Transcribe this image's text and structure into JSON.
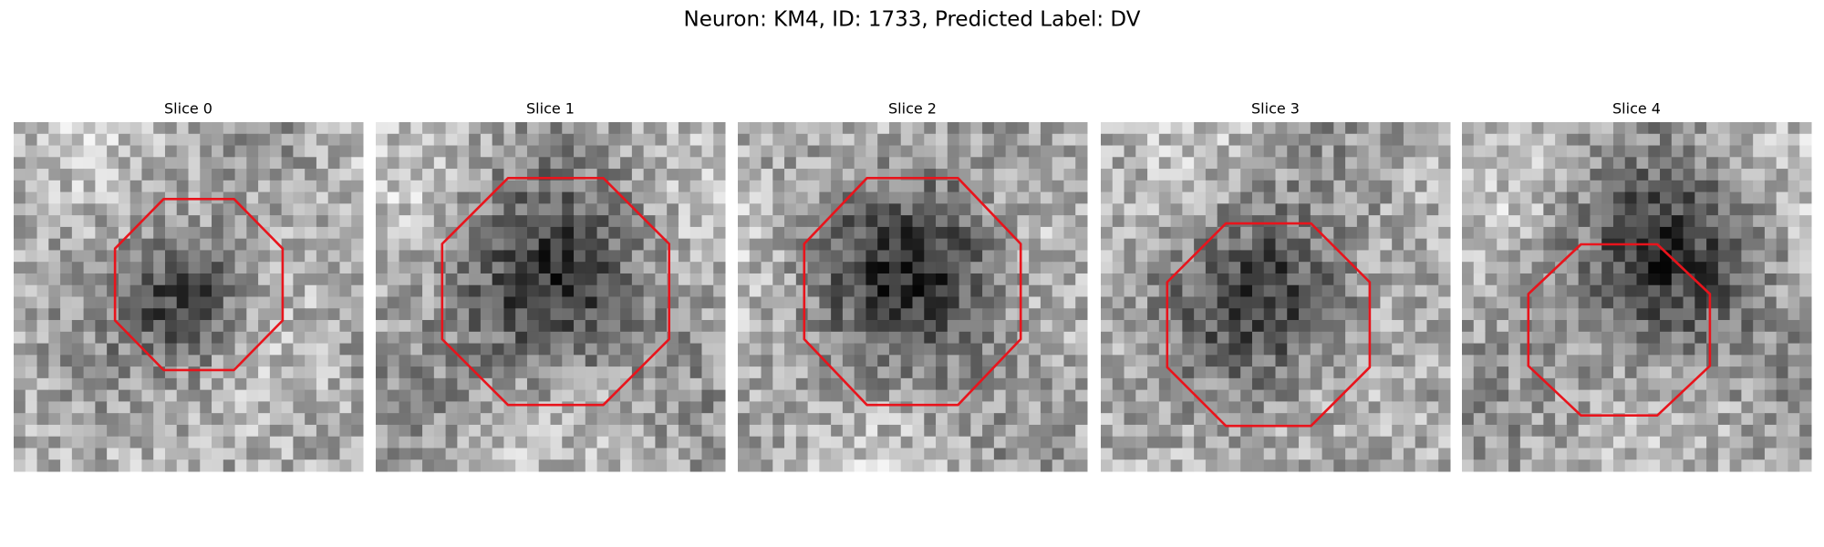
{
  "header": {
    "title": "Neuron: KM4, ID: 1733, Predicted Label: DV"
  },
  "panels": [
    {
      "title": "Slice 0"
    },
    {
      "title": "Slice 1"
    },
    {
      "title": "Slice 2"
    },
    {
      "title": "Slice 3"
    },
    {
      "title": "Slice 4"
    }
  ]
}
